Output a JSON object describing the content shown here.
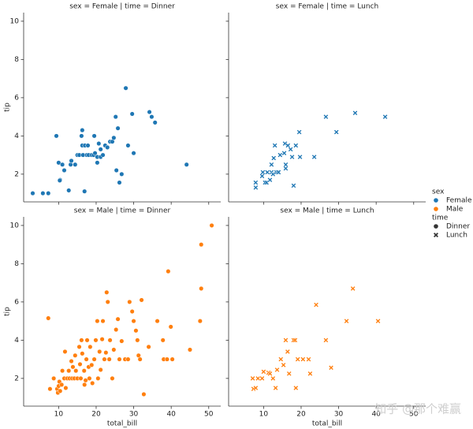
{
  "chart_data": [
    {
      "type": "scatter",
      "title": "sex = Female | time = Dinner",
      "ylabel": "tip",
      "color": "#1f77b4",
      "marker": "o",
      "xlim": [
        0.68,
        53.2
      ],
      "ylim": [
        0.55,
        10.45
      ],
      "xticks": [
        10,
        20,
        30,
        40,
        50
      ],
      "yticks": [
        2,
        4,
        6,
        8,
        10
      ],
      "x": [
        3.1,
        5.8,
        7.25,
        9.4,
        10,
        10.4,
        10.3,
        11,
        11.5,
        12.7,
        13.2,
        13.4,
        14.4,
        15,
        15.5,
        16.1,
        16.3,
        16.3,
        16.5,
        16.9,
        17,
        17.5,
        17.8,
        18,
        18.8,
        19.3,
        19.5,
        19.7,
        20.3,
        20.3,
        20.7,
        21.2,
        21.2,
        21.8,
        22.4,
        23,
        23.7,
        24.3,
        24.7,
        25.2,
        25.4,
        25.8,
        26.2,
        26.8,
        27.9,
        28.5,
        29.6,
        30,
        34.2,
        34.8,
        35.7,
        44.1
      ],
      "y": [
        1.0,
        1.0,
        1.0,
        4.0,
        2.6,
        1.7,
        1.67,
        2.5,
        2.2,
        1.15,
        2.5,
        2.7,
        2.5,
        3.0,
        3.0,
        4.0,
        4.3,
        3.5,
        3.0,
        1.1,
        3.5,
        3.0,
        3.5,
        3.0,
        3.0,
        3.0,
        4.0,
        3.1,
        2.6,
        2.9,
        3.6,
        3.3,
        2.9,
        3.0,
        3.5,
        3.4,
        3.7,
        3.7,
        3.9,
        5.0,
        2.2,
        4.4,
        1.56,
        2.0,
        6.5,
        3.5,
        5.15,
        3.1,
        5.25,
        5.0,
        4.7,
        2.5
      ]
    },
    {
      "type": "scatter",
      "title": "sex = Female | time = Lunch",
      "color": "#1f77b4",
      "marker": "x",
      "xlim": [
        0.68,
        53.2
      ],
      "ylim": [
        0.55,
        10.45
      ],
      "xticks": [
        10,
        20,
        30,
        40,
        50
      ],
      "yticks": [
        2,
        4,
        6,
        8,
        10
      ],
      "x": [
        7.9,
        7.9,
        9.6,
        9.8,
        10.4,
        10.8,
        11,
        11.7,
        12.1,
        12.1,
        12.5,
        12.7,
        13,
        13.4,
        13.8,
        14,
        14.4,
        15.5,
        15.7,
        15.9,
        15.9,
        16.5,
        17.2,
        17.6,
        18,
        18.6,
        19.5,
        19.7,
        23.5,
        26.6,
        29.4,
        34.4,
        42.4
      ],
      "y": [
        1.56,
        1.3,
        1.9,
        2.1,
        1.56,
        1.56,
        2.1,
        1.7,
        2.1,
        2.5,
        2.0,
        2.84,
        3.5,
        2.1,
        2.1,
        2.1,
        3.0,
        3.1,
        3.6,
        2.5,
        2.3,
        3.5,
        3.3,
        2.9,
        1.4,
        3.5,
        4.2,
        2.9,
        2.9,
        5.0,
        4.2,
        5.2,
        5.0
      ]
    },
    {
      "type": "scatter",
      "title": "sex = Male | time = Dinner",
      "xlabel": "total_bill",
      "ylabel": "tip",
      "color": "#ff7f0e",
      "marker": "o",
      "xlim": [
        0.68,
        53.2
      ],
      "ylim": [
        0.55,
        10.45
      ],
      "xticks": [
        10,
        20,
        30,
        40,
        50
      ],
      "yticks": [
        2,
        4,
        6,
        8,
        10
      ],
      "x": [
        7.25,
        7.7,
        8.7,
        9.6,
        9.8,
        10,
        10.2,
        10.4,
        10.8,
        11,
        11.7,
        11.5,
        11.9,
        12.3,
        12.7,
        12.9,
        13.4,
        13.6,
        13.8,
        14.2,
        14.4,
        14.6,
        15,
        15.5,
        15.7,
        15.9,
        16.1,
        16.3,
        16.8,
        16.9,
        17.2,
        17.4,
        17.6,
        18,
        18.2,
        18.4,
        18.8,
        19,
        19.5,
        19.9,
        20.3,
        20.5,
        20.9,
        21.2,
        21.6,
        21.8,
        22.2,
        22.6,
        22.8,
        23.1,
        23.5,
        23.7,
        24.3,
        24.7,
        25.3,
        25.8,
        26.2,
        26.8,
        27.7,
        28.5,
        28.9,
        29.6,
        30,
        30.6,
        31,
        31.3,
        31.7,
        32.1,
        32.7,
        34,
        36.3,
        37.8,
        38,
        39.2,
        38.9,
        39.9,
        40.3,
        45,
        47.7,
        48,
        48,
        50.8
      ],
      "y": [
        5.15,
        1.45,
        2.0,
        1.45,
        1.25,
        1.6,
        1.83,
        1.34,
        1.67,
        2.4,
        3.4,
        2.0,
        1.5,
        2.0,
        2.4,
        2.0,
        2.9,
        2.0,
        2.6,
        2.0,
        3.2,
        2.4,
        2.0,
        3.65,
        2.74,
        2.0,
        4.0,
        3.3,
        2.4,
        1.67,
        1.9,
        3.0,
        4.0,
        2.6,
        2.0,
        3.65,
        2.7,
        1.75,
        3.0,
        4.0,
        5.0,
        2.0,
        3.4,
        2.45,
        4.05,
        5.0,
        3.0,
        3.35,
        6.5,
        6.0,
        3.0,
        4.0,
        2.0,
        3.5,
        4.55,
        5.1,
        3.0,
        3.95,
        3.0,
        3.0,
        6.0,
        5.5,
        5.0,
        4.5,
        4.0,
        3.2,
        3.0,
        6.1,
        1.17,
        3.65,
        5.0,
        4.0,
        3.0,
        7.6,
        3.0,
        4.7,
        3.0,
        3.5,
        5.0,
        9.0,
        6.7,
        10.0
      ]
    },
    {
      "type": "scatter",
      "title": "sex = Male | time = Lunch",
      "xlabel": "total_bill",
      "color": "#ff7f0e",
      "marker": "x",
      "xlim": [
        0.68,
        53.2
      ],
      "ylim": [
        0.55,
        10.45
      ],
      "xticks": [
        10,
        20,
        30,
        40,
        50
      ],
      "yticks": [
        2,
        4,
        6,
        8,
        10
      ],
      "x": [
        7.1,
        7.3,
        7.9,
        8.5,
        9.6,
        10,
        11.3,
        11.7,
        12.5,
        13.2,
        13.6,
        14.6,
        15.3,
        15.9,
        16.4,
        16.8,
        18,
        18.4,
        18.6,
        19.1,
        20.5,
        22,
        22.4,
        24,
        26.6,
        28,
        32.1,
        33.8,
        40.5
      ],
      "y": [
        2.0,
        1.45,
        1.5,
        2.0,
        2.0,
        2.35,
        2.3,
        2.25,
        2.0,
        1.5,
        2.45,
        3.0,
        2.7,
        4.0,
        3.4,
        2.25,
        4.0,
        4.0,
        1.5,
        3.0,
        3.0,
        3.0,
        2.25,
        5.85,
        4.0,
        2.56,
        5.0,
        6.7,
        5.0
      ]
    }
  ],
  "legend": {
    "hue_title": "sex",
    "hue": [
      {
        "label": "Female",
        "color": "#1f77b4"
      },
      {
        "label": "Male",
        "color": "#ff7f0e"
      }
    ],
    "style_title": "time",
    "style": [
      {
        "label": "Dinner",
        "marker": "o"
      },
      {
        "label": "Lunch",
        "marker": "x"
      }
    ]
  },
  "watermark": "知乎 @那个难赢"
}
